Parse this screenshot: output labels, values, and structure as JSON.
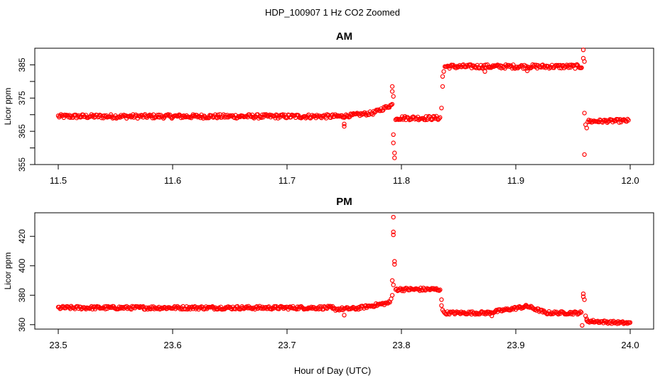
{
  "figure": {
    "title": "HDP_100907  1 Hz CO2 Zoomed",
    "xlabel": "Hour of Day (UTC)",
    "point_color": "#ff0000"
  },
  "chart_data": [
    {
      "type": "scatter",
      "title": "AM",
      "xlabel": "",
      "ylabel": "Licor ppm",
      "xlim": [
        11.5,
        12.0
      ],
      "ylim": [
        355,
        390
      ],
      "xticks": [
        11.5,
        11.6,
        11.7,
        11.8,
        11.9,
        12.0
      ],
      "xtick_labels": [
        "11.5",
        "11.6",
        "11.7",
        "11.8",
        "11.9",
        "12.0"
      ],
      "yticks": [
        355,
        360,
        365,
        370,
        375,
        380,
        385
      ],
      "ytick_labels": [
        "355",
        "",
        "365",
        "",
        "375",
        "",
        "385"
      ],
      "grid": false,
      "series": [
        {
          "color": "#ff0000",
          "segments": [
            {
              "x0": 11.5,
              "x1": 11.75,
              "y0": 369.5,
              "y1": 369.5,
              "band": 1.2
            },
            {
              "x0": 11.75,
              "x1": 11.775,
              "y0": 369.6,
              "y1": 370.5,
              "band": 1.0
            },
            {
              "x0": 11.775,
              "x1": 11.792,
              "y0": 370.5,
              "y1": 373.0,
              "band": 1.0
            },
            {
              "x0": 11.795,
              "x1": 11.834,
              "y0": 369.0,
              "y1": 369.0,
              "band": 1.2
            },
            {
              "x0": 11.838,
              "x1": 11.958,
              "y0": 384.5,
              "y1": 384.5,
              "band": 1.2
            },
            {
              "x0": 11.963,
              "x1": 11.999,
              "y0": 368.0,
              "y1": 368.2,
              "band": 1.0
            }
          ],
          "outliers": [
            {
              "x": 11.792,
              "y": 378.5
            },
            {
              "x": 11.792,
              "y": 377.0
            },
            {
              "x": 11.793,
              "y": 375.5
            },
            {
              "x": 11.793,
              "y": 364.0
            },
            {
              "x": 11.793,
              "y": 361.5
            },
            {
              "x": 11.794,
              "y": 358.5
            },
            {
              "x": 11.794,
              "y": 357.0
            },
            {
              "x": 11.835,
              "y": 372.0
            },
            {
              "x": 11.836,
              "y": 378.5
            },
            {
              "x": 11.836,
              "y": 381.5
            },
            {
              "x": 11.837,
              "y": 383.0
            },
            {
              "x": 11.75,
              "y": 366.5
            },
            {
              "x": 11.75,
              "y": 367.2
            },
            {
              "x": 11.959,
              "y": 389.5
            },
            {
              "x": 11.959,
              "y": 387.0
            },
            {
              "x": 11.96,
              "y": 386.0
            },
            {
              "x": 11.96,
              "y": 370.5
            },
            {
              "x": 11.96,
              "y": 358.0
            },
            {
              "x": 11.961,
              "y": 367.0
            },
            {
              "x": 11.962,
              "y": 366.0
            },
            {
              "x": 11.873,
              "y": 383.0
            },
            {
              "x": 11.91,
              "y": 383.2
            }
          ]
        }
      ]
    },
    {
      "type": "scatter",
      "title": "PM",
      "xlabel": "Hour of Day (UTC)",
      "ylabel": "Licor ppm",
      "xlim": [
        23.5,
        24.0
      ],
      "ylim": [
        357,
        436
      ],
      "xticks": [
        23.5,
        23.6,
        23.7,
        23.8,
        23.9,
        24.0
      ],
      "xtick_labels": [
        "23.5",
        "23.6",
        "23.7",
        "23.8",
        "23.9",
        "24.0"
      ],
      "yticks": [
        360,
        380,
        400,
        420
      ],
      "ytick_labels": [
        "360",
        "380",
        "400",
        "420"
      ],
      "grid": false,
      "series": [
        {
          "color": "#ff0000",
          "segments": [
            {
              "x0": 23.5,
              "x1": 23.74,
              "y0": 371.5,
              "y1": 371.5,
              "band": 2.2
            },
            {
              "x0": 23.74,
              "x1": 23.76,
              "y0": 370.5,
              "y1": 371.0,
              "band": 2.0
            },
            {
              "x0": 23.76,
              "x1": 23.79,
              "y0": 371.0,
              "y1": 375.0,
              "band": 2.0
            },
            {
              "x0": 23.795,
              "x1": 23.834,
              "y0": 384.0,
              "y1": 384.0,
              "band": 2.2
            },
            {
              "x0": 23.837,
              "x1": 23.875,
              "y0": 368.0,
              "y1": 368.0,
              "band": 2.0
            },
            {
              "x0": 23.875,
              "x1": 23.91,
              "y0": 368.0,
              "y1": 372.5,
              "band": 2.0
            },
            {
              "x0": 23.91,
              "x1": 23.925,
              "y0": 372.5,
              "y1": 368.5,
              "band": 2.0
            },
            {
              "x0": 23.925,
              "x1": 23.958,
              "y0": 368.0,
              "y1": 368.0,
              "band": 2.0
            },
            {
              "x0": 23.962,
              "x1": 24.0,
              "y0": 362.5,
              "y1": 361.0,
              "band": 1.8
            }
          ],
          "outliers": [
            {
              "x": 23.793,
              "y": 433.0
            },
            {
              "x": 23.793,
              "y": 423.0
            },
            {
              "x": 23.793,
              "y": 421.0
            },
            {
              "x": 23.794,
              "y": 403.0
            },
            {
              "x": 23.794,
              "y": 401.0
            },
            {
              "x": 23.792,
              "y": 390.0
            },
            {
              "x": 23.793,
              "y": 387.0
            },
            {
              "x": 23.792,
              "y": 380.0
            },
            {
              "x": 23.791,
              "y": 377.5
            },
            {
              "x": 23.835,
              "y": 377.0
            },
            {
              "x": 23.835,
              "y": 373.0
            },
            {
              "x": 23.836,
              "y": 370.0
            },
            {
              "x": 23.75,
              "y": 366.5
            },
            {
              "x": 23.959,
              "y": 381.0
            },
            {
              "x": 23.959,
              "y": 379.0
            },
            {
              "x": 23.96,
              "y": 377.0
            },
            {
              "x": 23.958,
              "y": 359.5
            },
            {
              "x": 23.961,
              "y": 366.0
            },
            {
              "x": 23.962,
              "y": 364.0
            },
            {
              "x": 23.879,
              "y": 366.0
            }
          ]
        }
      ]
    }
  ]
}
